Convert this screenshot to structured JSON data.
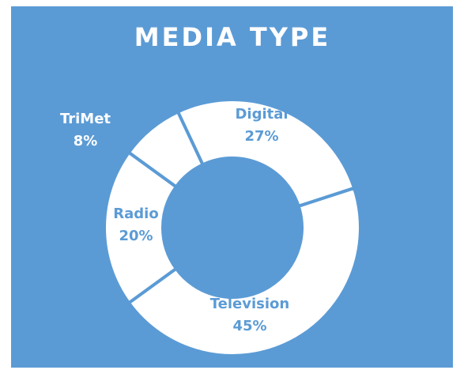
{
  "chart_data": {
    "type": "donut",
    "title": "MEDIA TYPE",
    "categories": [
      "Digital",
      "Television",
      "Radio",
      "TriMet"
    ],
    "values": [
      27,
      45,
      20,
      8
    ],
    "value_labels": [
      "27%",
      "45%",
      "20%",
      "8%"
    ],
    "background_color": "#5b9bd5",
    "slice_color": "#ffffff"
  }
}
